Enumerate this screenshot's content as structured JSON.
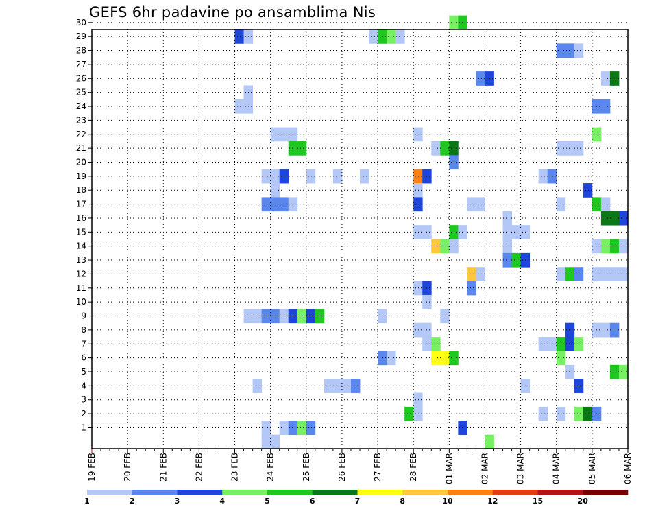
{
  "title": "GEFS 6hr padavine po ansamblima Nis",
  "chart_data": {
    "type": "heatmap",
    "title": "GEFS 6hr padavine po ansamblima Nis",
    "x_labels": [
      "19 FEB",
      "20 FEB",
      "21 FEB",
      "22 FEB",
      "23 FEB",
      "24 FEB",
      "25 FEB",
      "26 FEB",
      "27 FEB",
      "28 FEB",
      "01 MAR",
      "02 MAR",
      "03 MAR",
      "04 MAR",
      "05 MAR",
      "06 MAR"
    ],
    "y_labels": [
      1,
      2,
      3,
      4,
      5,
      6,
      7,
      8,
      9,
      10,
      11,
      12,
      13,
      14,
      15,
      16,
      17,
      18,
      19,
      20,
      21,
      22,
      23,
      24,
      25,
      26,
      27,
      28,
      29,
      30
    ],
    "grid": true,
    "colorbar": {
      "labels": [
        "1",
        "2",
        "3",
        "4",
        "5",
        "6",
        "7",
        "8",
        "10",
        "12",
        "15",
        "20"
      ],
      "colors": [
        "#b4c8f8",
        "#5a87ee",
        "#1e46dc",
        "#78f064",
        "#1ec81e",
        "#0a7814",
        "#ffff14",
        "#ffc83c",
        "#ff8214",
        "#e63c14",
        "#b41414",
        "#780000"
      ]
    },
    "cells": [
      {
        "day": 4.0,
        "member": 29,
        "level": 3
      },
      {
        "day": 4.25,
        "member": 29,
        "level": 1
      },
      {
        "day": 7.75,
        "member": 29,
        "level": 1
      },
      {
        "day": 8.0,
        "member": 29,
        "level": 5
      },
      {
        "day": 8.25,
        "member": 29,
        "level": 4
      },
      {
        "day": 8.5,
        "member": 29,
        "level": 1
      },
      {
        "day": 10.0,
        "member": 30,
        "level": 4
      },
      {
        "day": 10.25,
        "member": 30,
        "level": 5
      },
      {
        "day": 13.0,
        "member": 28,
        "level": 2
      },
      {
        "day": 13.25,
        "member": 28,
        "level": 2
      },
      {
        "day": 13.5,
        "member": 28,
        "level": 1
      },
      {
        "day": 10.75,
        "member": 26,
        "level": 2
      },
      {
        "day": 11.0,
        "member": 26,
        "level": 3
      },
      {
        "day": 14.25,
        "member": 26,
        "level": 1
      },
      {
        "day": 14.5,
        "member": 26,
        "level": 6
      },
      {
        "day": 4.25,
        "member": 25,
        "level": 1
      },
      {
        "day": 4.0,
        "member": 24,
        "level": 1
      },
      {
        "day": 4.25,
        "member": 24,
        "level": 1
      },
      {
        "day": 14.0,
        "member": 24,
        "level": 2
      },
      {
        "day": 14.25,
        "member": 24,
        "level": 2
      },
      {
        "day": 5.0,
        "member": 22,
        "level": 1
      },
      {
        "day": 5.25,
        "member": 22,
        "level": 1
      },
      {
        "day": 5.5,
        "member": 22,
        "level": 1
      },
      {
        "day": 9.0,
        "member": 22,
        "level": 1
      },
      {
        "day": 14.0,
        "member": 22,
        "level": 4
      },
      {
        "day": 5.5,
        "member": 21,
        "level": 5
      },
      {
        "day": 5.75,
        "member": 21,
        "level": 5
      },
      {
        "day": 9.5,
        "member": 21,
        "level": 1
      },
      {
        "day": 9.75,
        "member": 21,
        "level": 5
      },
      {
        "day": 10.0,
        "member": 21,
        "level": 6
      },
      {
        "day": 13.0,
        "member": 21,
        "level": 1
      },
      {
        "day": 13.25,
        "member": 21,
        "level": 1
      },
      {
        "day": 13.5,
        "member": 21,
        "level": 1
      },
      {
        "day": 10.0,
        "member": 20,
        "level": 2
      },
      {
        "day": 4.75,
        "member": 19,
        "level": 1
      },
      {
        "day": 5.0,
        "member": 19,
        "level": 1
      },
      {
        "day": 5.25,
        "member": 19,
        "level": 3
      },
      {
        "day": 6.0,
        "member": 19,
        "level": 1
      },
      {
        "day": 6.75,
        "member": 19,
        "level": 1
      },
      {
        "day": 7.5,
        "member": 19,
        "level": 1
      },
      {
        "day": 9.0,
        "member": 19,
        "level": 9
      },
      {
        "day": 9.25,
        "member": 19,
        "level": 3
      },
      {
        "day": 12.5,
        "member": 19,
        "level": 1
      },
      {
        "day": 12.75,
        "member": 19,
        "level": 2
      },
      {
        "day": 5.0,
        "member": 18,
        "level": 1
      },
      {
        "day": 9.0,
        "member": 18,
        "level": 1
      },
      {
        "day": 13.75,
        "member": 18,
        "level": 3
      },
      {
        "day": 4.75,
        "member": 17,
        "level": 2
      },
      {
        "day": 5.0,
        "member": 17,
        "level": 2
      },
      {
        "day": 5.25,
        "member": 17,
        "level": 2
      },
      {
        "day": 5.5,
        "member": 17,
        "level": 1
      },
      {
        "day": 9.0,
        "member": 17,
        "level": 3
      },
      {
        "day": 10.5,
        "member": 17,
        "level": 1
      },
      {
        "day": 10.75,
        "member": 17,
        "level": 1
      },
      {
        "day": 13.0,
        "member": 17,
        "level": 1
      },
      {
        "day": 14.0,
        "member": 17,
        "level": 5
      },
      {
        "day": 14.25,
        "member": 17,
        "level": 1
      },
      {
        "day": 11.5,
        "member": 16,
        "level": 1
      },
      {
        "day": 14.25,
        "member": 16,
        "level": 6
      },
      {
        "day": 14.5,
        "member": 16,
        "level": 6
      },
      {
        "day": 14.75,
        "member": 16,
        "level": 3
      },
      {
        "day": 9.0,
        "member": 15,
        "level": 1
      },
      {
        "day": 9.25,
        "member": 15,
        "level": 1
      },
      {
        "day": 10.0,
        "member": 15,
        "level": 5
      },
      {
        "day": 10.25,
        "member": 15,
        "level": 1
      },
      {
        "day": 11.5,
        "member": 15,
        "level": 1
      },
      {
        "day": 11.75,
        "member": 15,
        "level": 1
      },
      {
        "day": 12.0,
        "member": 15,
        "level": 1
      },
      {
        "day": 11.5,
        "member": 14,
        "level": 1
      },
      {
        "day": 9.5,
        "member": 14,
        "level": 8
      },
      {
        "day": 9.75,
        "member": 14,
        "level": 4
      },
      {
        "day": 10.0,
        "member": 14,
        "level": 1
      },
      {
        "day": 14.0,
        "member": 14,
        "level": 1
      },
      {
        "day": 14.25,
        "member": 14,
        "level": 4
      },
      {
        "day": 14.5,
        "member": 14,
        "level": 5
      },
      {
        "day": 14.75,
        "member": 14,
        "level": 1
      },
      {
        "day": 11.5,
        "member": 13,
        "level": 2
      },
      {
        "day": 11.75,
        "member": 13,
        "level": 5
      },
      {
        "day": 12.0,
        "member": 13,
        "level": 3
      },
      {
        "day": 10.5,
        "member": 12,
        "level": 8
      },
      {
        "day": 10.75,
        "member": 12,
        "level": 1
      },
      {
        "day": 13.0,
        "member": 12,
        "level": 1
      },
      {
        "day": 13.25,
        "member": 12,
        "level": 5
      },
      {
        "day": 13.5,
        "member": 12,
        "level": 2
      },
      {
        "day": 14.0,
        "member": 12,
        "level": 1
      },
      {
        "day": 14.25,
        "member": 12,
        "level": 1
      },
      {
        "day": 14.5,
        "member": 12,
        "level": 1
      },
      {
        "day": 14.75,
        "member": 12,
        "level": 1
      },
      {
        "day": 9.0,
        "member": 11,
        "level": 1
      },
      {
        "day": 9.25,
        "member": 11,
        "level": 3
      },
      {
        "day": 10.5,
        "member": 11,
        "level": 2
      },
      {
        "day": 9.25,
        "member": 10,
        "level": 1
      },
      {
        "day": 4.25,
        "member": 9,
        "level": 1
      },
      {
        "day": 4.5,
        "member": 9,
        "level": 1
      },
      {
        "day": 4.75,
        "member": 9,
        "level": 2
      },
      {
        "day": 5.0,
        "member": 9,
        "level": 2
      },
      {
        "day": 5.25,
        "member": 9,
        "level": 1
      },
      {
        "day": 5.5,
        "member": 9,
        "level": 3
      },
      {
        "day": 5.75,
        "member": 9,
        "level": 4
      },
      {
        "day": 6.0,
        "member": 9,
        "level": 3
      },
      {
        "day": 6.25,
        "member": 9,
        "level": 5
      },
      {
        "day": 8.0,
        "member": 9,
        "level": 1
      },
      {
        "day": 9.75,
        "member": 9,
        "level": 1
      },
      {
        "day": 9.0,
        "member": 8,
        "level": 1
      },
      {
        "day": 9.25,
        "member": 8,
        "level": 1
      },
      {
        "day": 13.25,
        "member": 8,
        "level": 3
      },
      {
        "day": 14.0,
        "member": 8,
        "level": 1
      },
      {
        "day": 14.25,
        "member": 8,
        "level": 1
      },
      {
        "day": 14.5,
        "member": 8,
        "level": 2
      },
      {
        "day": 9.25,
        "member": 7,
        "level": 1
      },
      {
        "day": 9.5,
        "member": 7,
        "level": 4
      },
      {
        "day": 12.5,
        "member": 7,
        "level": 1
      },
      {
        "day": 12.75,
        "member": 7,
        "level": 1
      },
      {
        "day": 13.0,
        "member": 7,
        "level": 5
      },
      {
        "day": 13.25,
        "member": 7,
        "level": 3
      },
      {
        "day": 13.5,
        "member": 7,
        "level": 4
      },
      {
        "day": 8.0,
        "member": 6,
        "level": 2
      },
      {
        "day": 8.25,
        "member": 6,
        "level": 1
      },
      {
        "day": 9.5,
        "member": 6,
        "level": 7
      },
      {
        "day": 9.75,
        "member": 6,
        "level": 7
      },
      {
        "day": 10.0,
        "member": 6,
        "level": 5
      },
      {
        "day": 13.0,
        "member": 6,
        "level": 4
      },
      {
        "day": 13.25,
        "member": 5,
        "level": 1
      },
      {
        "day": 14.5,
        "member": 5,
        "level": 5
      },
      {
        "day": 14.75,
        "member": 5,
        "level": 4
      },
      {
        "day": 4.5,
        "member": 4,
        "level": 1
      },
      {
        "day": 6.5,
        "member": 4,
        "level": 1
      },
      {
        "day": 6.75,
        "member": 4,
        "level": 1
      },
      {
        "day": 7.0,
        "member": 4,
        "level": 1
      },
      {
        "day": 7.25,
        "member": 4,
        "level": 2
      },
      {
        "day": 12.0,
        "member": 4,
        "level": 1
      },
      {
        "day": 13.5,
        "member": 4,
        "level": 3
      },
      {
        "day": 9.0,
        "member": 3,
        "level": 1
      },
      {
        "day": 8.75,
        "member": 2,
        "level": 5
      },
      {
        "day": 9.0,
        "member": 2,
        "level": 1
      },
      {
        "day": 12.5,
        "member": 2,
        "level": 1
      },
      {
        "day": 13.0,
        "member": 2,
        "level": 1
      },
      {
        "day": 13.5,
        "member": 2,
        "level": 4
      },
      {
        "day": 13.75,
        "member": 2,
        "level": 6
      },
      {
        "day": 14.0,
        "member": 2,
        "level": 2
      },
      {
        "day": 4.75,
        "member": 1,
        "level": 1
      },
      {
        "day": 5.25,
        "member": 1,
        "level": 1
      },
      {
        "day": 5.5,
        "member": 1,
        "level": 2
      },
      {
        "day": 5.75,
        "member": 1,
        "level": 4
      },
      {
        "day": 6.0,
        "member": 1,
        "level": 2
      },
      {
        "day": 10.25,
        "member": 1,
        "level": 3
      },
      {
        "day": 4.75,
        "member": 0,
        "level": 1
      },
      {
        "day": 5.0,
        "member": 0,
        "level": 1
      },
      {
        "day": 11.0,
        "member": 0,
        "level": 4
      }
    ]
  }
}
